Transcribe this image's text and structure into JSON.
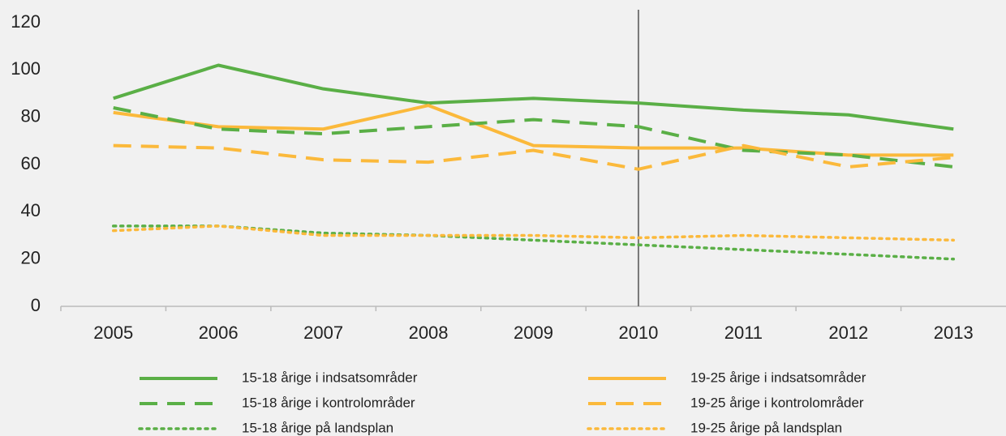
{
  "chart_data": {
    "type": "line",
    "categories": [
      "2005",
      "2006",
      "2007",
      "2008",
      "2009",
      "2010",
      "2011",
      "2012",
      "2013"
    ],
    "series": [
      {
        "name": "15-18 årige i indsatsområder",
        "color": "#5aaf46",
        "dash": "solid",
        "values": [
          88,
          102,
          92,
          86,
          88,
          86,
          83,
          81,
          75
        ]
      },
      {
        "name": "19-25 årige i indsatsområder",
        "color": "#fbb93b",
        "dash": "solid",
        "values": [
          82,
          76,
          75,
          85,
          68,
          67,
          67,
          64,
          64
        ]
      },
      {
        "name": "15-18 årige i kontrolområder",
        "color": "#5aaf46",
        "dash": "dashed",
        "values": [
          84,
          75,
          73,
          76,
          79,
          76,
          66,
          64,
          59
        ]
      },
      {
        "name": "19-25 årige i kontrolområder",
        "color": "#fbb93b",
        "dash": "dashed",
        "values": [
          68,
          67,
          62,
          61,
          66,
          58,
          68,
          59,
          63
        ]
      },
      {
        "name": "15-18 årige på landsplan",
        "color": "#5aaf46",
        "dash": "dotted",
        "values": [
          34,
          34,
          31,
          30,
          28,
          26,
          24,
          22,
          20
        ]
      },
      {
        "name": "19-25 årige på landsplan",
        "color": "#fbb93b",
        "dash": "dotted",
        "values": [
          32,
          34,
          30,
          30,
          30,
          29,
          30,
          29,
          28
        ]
      }
    ],
    "ylim": [
      0,
      120
    ],
    "yticks": [
      0,
      20,
      40,
      60,
      80,
      100,
      120
    ],
    "grid": false,
    "vline_category": "2010",
    "legend": "bottom"
  }
}
